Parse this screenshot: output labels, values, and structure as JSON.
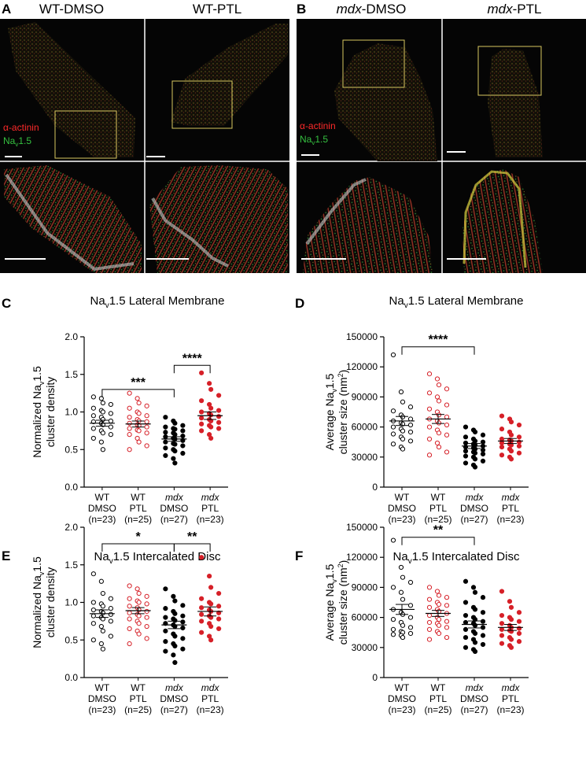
{
  "colors": {
    "wt_point": "#000000",
    "ptl_red": "#d62028",
    "actinin": "#ff2a2a",
    "nav": "#35c040",
    "micro_bg": "#050505",
    "box": "#d8c860"
  },
  "panel_a": {
    "letter": "A",
    "titles": [
      "WT-DMSO",
      "WT-PTL"
    ],
    "legend": {
      "actinin": "α-actinin",
      "nav_main": "Na",
      "nav_sub": "v",
      "nav_tail": "1.5"
    }
  },
  "panel_b": {
    "letter": "B",
    "titles": [
      {
        "italic": "mdx",
        "rest": "-DMSO"
      },
      {
        "italic": "mdx",
        "rest": "-PTL"
      }
    ],
    "legend": {
      "actinin": "α-actinin",
      "nav_main": "Na",
      "nav_sub": "v",
      "nav_tail": "1.5"
    }
  },
  "group_labels": [
    {
      "line1": "WT",
      "line1_italic": false,
      "line2": "DMSO",
      "line3": "(n=23)"
    },
    {
      "line1": "WT",
      "line1_italic": false,
      "line2": "PTL",
      "line3": "(n=25)"
    },
    {
      "line1": "mdx",
      "line1_italic": true,
      "line2": "DMSO",
      "line3": "(n=27)"
    },
    {
      "line1": "mdx",
      "line1_italic": true,
      "line2": "PTL",
      "line3": "(n=23)"
    }
  ],
  "chart_data": [
    {
      "panel": "C",
      "type": "scatter",
      "title": {
        "main": "Na",
        "sub": "v",
        "tail": "1.5 Lateral Membrane"
      },
      "ylabel_lines": [
        "Normalized Na",
        "v",
        "1.5",
        "cluster density"
      ],
      "ylim": [
        0,
        2.0
      ],
      "yticks": [
        "0.0",
        "0.5",
        "1.0",
        "1.5",
        "2.0"
      ],
      "categories": [
        "WT DMSO",
        "WT PTL",
        "mdx DMSO",
        "mdx PTL"
      ],
      "series": [
        {
          "values": [
            1.2,
            1.18,
            1.12,
            1.1,
            1.05,
            1.02,
            1.0,
            0.98,
            0.95,
            0.93,
            0.9,
            0.88,
            0.87,
            0.85,
            0.83,
            0.8,
            0.78,
            0.75,
            0.72,
            0.7,
            0.65,
            0.6,
            0.5
          ],
          "mean": 0.85,
          "sem": 0.04
        },
        {
          "values": [
            1.25,
            1.18,
            1.12,
            1.08,
            1.05,
            1.0,
            0.98,
            0.95,
            0.93,
            0.9,
            0.88,
            0.87,
            0.85,
            0.83,
            0.82,
            0.8,
            0.78,
            0.76,
            0.75,
            0.72,
            0.7,
            0.65,
            0.6,
            0.55,
            0.5
          ],
          "mean": 0.84,
          "sem": 0.04
        },
        {
          "values": [
            0.93,
            0.88,
            0.85,
            0.82,
            0.8,
            0.78,
            0.77,
            0.75,
            0.73,
            0.72,
            0.7,
            0.68,
            0.67,
            0.65,
            0.64,
            0.62,
            0.6,
            0.58,
            0.57,
            0.55,
            0.52,
            0.5,
            0.48,
            0.45,
            0.42,
            0.38,
            0.32
          ],
          "mean": 0.64,
          "sem": 0.03
        },
        {
          "values": [
            1.52,
            1.38,
            1.3,
            1.22,
            1.15,
            1.1,
            1.05,
            1.02,
            1.0,
            0.98,
            0.96,
            0.94,
            0.92,
            0.9,
            0.88,
            0.86,
            0.84,
            0.82,
            0.8,
            0.78,
            0.75,
            0.7,
            0.65
          ],
          "mean": 0.95,
          "sem": 0.05
        }
      ],
      "sig": [
        {
          "from": 0,
          "to": 2,
          "label": "***",
          "y": 1.3
        },
        {
          "from": 2,
          "to": 3,
          "label": "****",
          "y": 1.62
        }
      ]
    },
    {
      "panel": "D",
      "type": "scatter",
      "title": {
        "main": "Na",
        "sub": "v",
        "tail": "1.5 Lateral Membrane"
      },
      "ylabel_lines": [
        "Average Na",
        "v",
        "1.5",
        "cluster size (nm",
        "2",
        ")"
      ],
      "ylim": [
        0,
        150000
      ],
      "yticks": [
        "0",
        "30000",
        "60000",
        "90000",
        "120000",
        "150000"
      ],
      "categories": [
        "WT DMSO",
        "WT PTL",
        "mdx DMSO",
        "mdx PTL"
      ],
      "series": [
        {
          "values": [
            132000,
            95000,
            85000,
            80000,
            76000,
            72000,
            70000,
            68000,
            66000,
            64000,
            63000,
            62000,
            60000,
            58000,
            56000,
            55000,
            53000,
            50000,
            48000,
            46000,
            43000,
            40000,
            38000
          ],
          "mean": 66000,
          "sem": 4500
        },
        {
          "values": [
            113000,
            108000,
            102000,
            98000,
            94000,
            90000,
            86000,
            82000,
            78000,
            75000,
            72000,
            70000,
            68000,
            66000,
            64000,
            62000,
            60000,
            57000,
            54000,
            52000,
            48000,
            44000,
            40000,
            35000,
            32000
          ],
          "mean": 68000,
          "sem": 4500
        },
        {
          "values": [
            60000,
            57000,
            55000,
            52000,
            50000,
            48000,
            46000,
            45000,
            44000,
            43000,
            42000,
            41000,
            40000,
            39000,
            38000,
            37000,
            36000,
            35000,
            34000,
            33000,
            31000,
            30000,
            28000,
            26000,
            24000,
            22000,
            20000
          ],
          "mean": 41000,
          "sem": 2500
        },
        {
          "values": [
            71000,
            68000,
            65000,
            62000,
            58000,
            55000,
            52000,
            50000,
            48000,
            47000,
            46000,
            45000,
            44000,
            43000,
            42000,
            41000,
            40000,
            38000,
            36000,
            34000,
            32000,
            30000,
            28000
          ],
          "mean": 46000,
          "sem": 2500
        }
      ],
      "sig": [
        {
          "from": 0,
          "to": 2,
          "label": "****",
          "y": 140000
        }
      ]
    },
    {
      "panel": "E",
      "type": "scatter",
      "title": {
        "main": "Na",
        "sub": "v",
        "tail": "1.5 Intercalated Disc"
      },
      "ylabel_lines": [
        "Normalized Na",
        "v",
        "1.5",
        "cluster density"
      ],
      "ylim": [
        0,
        2.0
      ],
      "yticks": [
        "0.0",
        "0.5",
        "1.0",
        "1.5",
        "2.0"
      ],
      "categories": [
        "WT DMSO",
        "WT PTL",
        "mdx DMSO",
        "mdx PTL"
      ],
      "series": [
        {
          "values": [
            1.38,
            1.28,
            1.12,
            1.05,
            1.0,
            0.98,
            0.95,
            0.92,
            0.9,
            0.88,
            0.86,
            0.84,
            0.82,
            0.8,
            0.78,
            0.75,
            0.72,
            0.68,
            0.62,
            0.55,
            0.5,
            0.45,
            0.38
          ],
          "mean": 0.85,
          "sem": 0.05
        },
        {
          "values": [
            1.22,
            1.18,
            1.12,
            1.08,
            1.05,
            1.02,
            1.0,
            0.98,
            0.95,
            0.93,
            0.9,
            0.88,
            0.86,
            0.84,
            0.82,
            0.8,
            0.78,
            0.75,
            0.72,
            0.68,
            0.65,
            0.62,
            0.58,
            0.52,
            0.45
          ],
          "mean": 0.89,
          "sem": 0.04
        },
        {
          "values": [
            1.18,
            1.08,
            1.02,
            0.96,
            0.92,
            0.88,
            0.85,
            0.82,
            0.8,
            0.78,
            0.76,
            0.74,
            0.72,
            0.7,
            0.68,
            0.66,
            0.62,
            0.58,
            0.55,
            0.52,
            0.48,
            0.45,
            0.42,
            0.38,
            0.35,
            0.3,
            0.2
          ],
          "mean": 0.7,
          "sem": 0.05
        },
        {
          "values": [
            1.6,
            1.35,
            1.2,
            1.12,
            1.05,
            1.0,
            0.98,
            0.95,
            0.93,
            0.9,
            0.88,
            0.86,
            0.84,
            0.82,
            0.8,
            0.78,
            0.75,
            0.72,
            0.68,
            0.65,
            0.6,
            0.55,
            0.5
          ],
          "mean": 0.88,
          "sem": 0.06
        }
      ],
      "sig": [
        {
          "from": 0,
          "to": 2,
          "label": "*",
          "y": 1.78
        },
        {
          "from": 2,
          "to": 3,
          "label": "**",
          "y": 1.78
        }
      ]
    },
    {
      "panel": "F",
      "type": "scatter",
      "title": {
        "main": "Na",
        "sub": "v",
        "tail": "1.5 Intercalated Disc"
      },
      "ylabel_lines": [
        "Average Na",
        "v",
        "1.5",
        "cluster size (nm",
        "2",
        ")"
      ],
      "ylim": [
        0,
        150000
      ],
      "yticks": [
        "0",
        "30000",
        "60000",
        "90000",
        "120000",
        "150000"
      ],
      "categories": [
        "WT DMSO",
        "WT PTL",
        "mdx DMSO",
        "mdx PTL"
      ],
      "series": [
        {
          "values": [
            137000,
            110000,
            100000,
            95000,
            90000,
            85000,
            78000,
            72000,
            68000,
            65000,
            63000,
            60000,
            58000,
            55000,
            52000,
            50000,
            48000,
            46000,
            45000,
            44000,
            43000,
            42000,
            40000
          ],
          "mean": 68000,
          "sem": 5000
        },
        {
          "values": [
            90000,
            86000,
            82000,
            80000,
            78000,
            75000,
            73000,
            72000,
            70000,
            68000,
            66000,
            64000,
            62000,
            60000,
            58000,
            56000,
            55000,
            54000,
            52000,
            50000,
            48000,
            46000,
            44000,
            40000,
            38000
          ],
          "mean": 64000,
          "sem": 3000
        },
        {
          "values": [
            96000,
            90000,
            85000,
            80000,
            75000,
            70000,
            68000,
            65000,
            62000,
            60000,
            58000,
            56000,
            55000,
            54000,
            52000,
            50000,
            48000,
            46000,
            44000,
            42000,
            40000,
            38000,
            35000,
            33000,
            30000,
            28000,
            26000
          ],
          "mean": 53000,
          "sem": 3500
        },
        {
          "values": [
            86000,
            76000,
            70000,
            65000,
            62000,
            60000,
            58000,
            56000,
            54000,
            52000,
            50000,
            49000,
            48000,
            47000,
            46000,
            44000,
            42000,
            40000,
            38000,
            36000,
            34000,
            32000,
            30000
          ],
          "mean": 50000,
          "sem": 3000
        }
      ],
      "sig": [
        {
          "from": 0,
          "to": 2,
          "label": "**",
          "y": 140000
        }
      ]
    }
  ]
}
